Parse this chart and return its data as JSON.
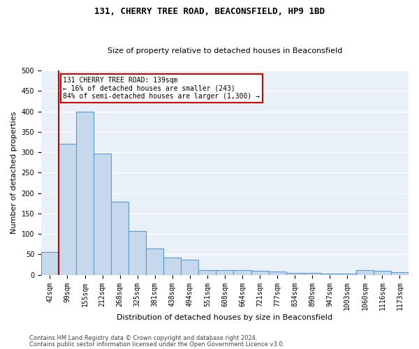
{
  "title": "131, CHERRY TREE ROAD, BEACONSFIELD, HP9 1BD",
  "subtitle": "Size of property relative to detached houses in Beaconsfield",
  "xlabel": "Distribution of detached houses by size in Beaconsfield",
  "ylabel": "Number of detached properties",
  "categories": [
    "42sqm",
    "99sqm",
    "155sqm",
    "212sqm",
    "268sqm",
    "325sqm",
    "381sqm",
    "438sqm",
    "494sqm",
    "551sqm",
    "608sqm",
    "664sqm",
    "721sqm",
    "777sqm",
    "834sqm",
    "890sqm",
    "947sqm",
    "1003sqm",
    "1060sqm",
    "1116sqm",
    "1173sqm"
  ],
  "values": [
    55,
    320,
    400,
    297,
    178,
    107,
    65,
    42,
    37,
    11,
    11,
    12,
    10,
    8,
    5,
    5,
    3,
    3,
    12,
    10,
    6
  ],
  "bar_color": "#c5d8ec",
  "bar_edge_color": "#5b9bd5",
  "property_line_color": "#cc0000",
  "annotation_text": "131 CHERRY TREE ROAD: 139sqm\n← 16% of detached houses are smaller (243)\n84% of semi-detached houses are larger (1,300) →",
  "annotation_box_color": "#cc0000",
  "ylim": [
    0,
    500
  ],
  "yticks": [
    0,
    50,
    100,
    150,
    200,
    250,
    300,
    350,
    400,
    450,
    500
  ],
  "bg_color": "#eaf0f8",
  "grid_color": "#ffffff",
  "footer_line1": "Contains HM Land Registry data © Crown copyright and database right 2024.",
  "footer_line2": "Contains public sector information licensed under the Open Government Licence v3.0.",
  "title_fontsize": 9,
  "subtitle_fontsize": 8,
  "ylabel_fontsize": 8,
  "xlabel_fontsize": 8,
  "tick_fontsize": 7,
  "annotation_fontsize": 7,
  "footer_fontsize": 6
}
